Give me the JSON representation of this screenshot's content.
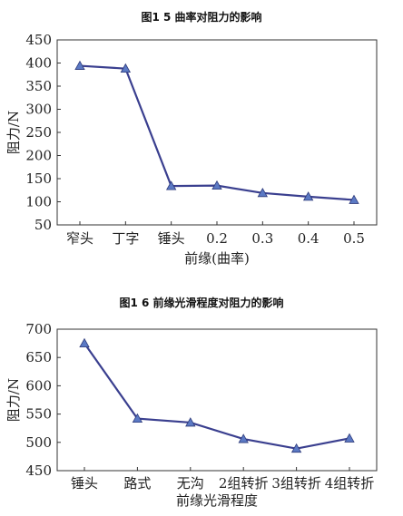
{
  "chart_data": [
    {
      "type": "line",
      "title": "图1 5 曲率对阻力的影响",
      "xlabel": "前缘(曲率)",
      "ylabel": "阻力/N",
      "categories": [
        "窄头",
        "丁字",
        "锤头",
        "0.2",
        "0.3",
        "0.4",
        "0.5"
      ],
      "values": [
        394,
        388,
        134,
        135,
        119,
        111,
        104
      ],
      "ylim": [
        50,
        450
      ],
      "yticks": [
        50,
        100,
        150,
        200,
        250,
        300,
        350,
        400,
        450
      ],
      "grid": false,
      "colors": {
        "line": "#3a3f8f",
        "marker": "#5b79c4"
      }
    },
    {
      "type": "line",
      "title": "图1 6 前缘光滑程度对阻力的影响",
      "xlabel": "前缘光滑程度",
      "ylabel": "阻力/N",
      "categories": [
        "锤头",
        "路式",
        "无沟",
        "2组转折",
        "3组转折",
        "4组转折"
      ],
      "values": [
        675,
        542,
        535,
        506,
        489,
        507
      ],
      "ylim": [
        450,
        700
      ],
      "yticks": [
        450,
        500,
        550,
        600,
        650,
        700
      ],
      "grid": false,
      "colors": {
        "line": "#3a3f8f",
        "marker": "#5b79c4"
      }
    }
  ]
}
